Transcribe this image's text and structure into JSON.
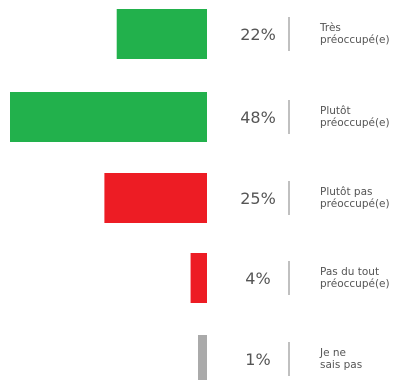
{
  "chart_data": {
    "type": "bar",
    "orientation": "horizontal",
    "direction": "right-to-left",
    "categories": [
      [
        "Très",
        "préoccupé(e)"
      ],
      [
        "Plutôt",
        "préoccupé(e)"
      ],
      [
        "Plutôt pas",
        "préoccupé(e)"
      ],
      [
        "Pas du tout",
        "préoccupé(e)"
      ],
      [
        "Je ne",
        "sais pas"
      ]
    ],
    "values": [
      22,
      48,
      25,
      4,
      1
    ],
    "value_labels": [
      "22%",
      "48%",
      "25%",
      "4%",
      "1%"
    ],
    "colors": [
      "#22b14c",
      "#22b14c",
      "#ed1c24",
      "#ed1c24",
      "#aaaaaa"
    ],
    "xlim": [
      0,
      48
    ],
    "title": "",
    "xlabel": "",
    "ylabel": "",
    "grid": false,
    "legend": "none"
  }
}
